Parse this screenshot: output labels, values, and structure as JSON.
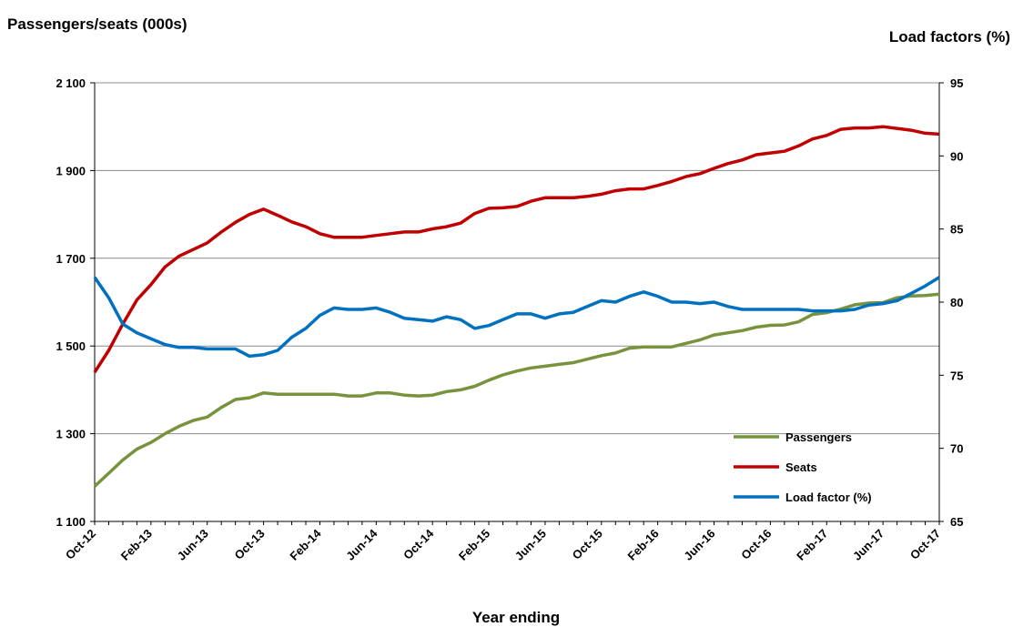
{
  "chart_data": {
    "type": "line",
    "y_left_label": "Passengers/seats (000s)",
    "y_right_label": "Load factors (%)",
    "xlabel": "Year ending",
    "x_tick_labels": [
      "Oct-12",
      "Feb-13",
      "Jun-13",
      "Oct-13",
      "Feb-14",
      "Jun-14",
      "Oct-14",
      "Feb-15",
      "Jun-15",
      "Oct-15",
      "Feb-16",
      "Jun-16",
      "Oct-16",
      "Feb-17",
      "Jun-17",
      "Oct-17"
    ],
    "y_left_ticks": [
      "1 100",
      "1 300",
      "1 500",
      "1 700",
      "1 900",
      "2 100"
    ],
    "y_right_ticks": [
      "65",
      "70",
      "75",
      "80",
      "85",
      "90",
      "95"
    ],
    "y_left_range": [
      1100,
      2100
    ],
    "y_right_range": [
      65,
      95
    ],
    "grid": true,
    "legend_position": "bottom-right",
    "series": [
      {
        "name": "Passengers",
        "axis": "left",
        "color": "#77933c",
        "values": [
          1180,
          1210,
          1240,
          1265,
          1280,
          1300,
          1317,
          1330,
          1338,
          1360,
          1378,
          1382,
          1393,
          1390,
          1390,
          1390,
          1390,
          1390,
          1386,
          1386,
          1393,
          1393,
          1388,
          1386,
          1388,
          1396,
          1400,
          1408,
          1422,
          1434,
          1443,
          1450,
          1454,
          1458,
          1462,
          1470,
          1478,
          1484,
          1495,
          1498,
          1498,
          1498,
          1506,
          1514,
          1525,
          1530,
          1535,
          1543,
          1547,
          1548,
          1555,
          1572,
          1576,
          1584,
          1594,
          1598,
          1599,
          1610,
          1614,
          1615,
          1618
        ]
      },
      {
        "name": "Seats",
        "axis": "left",
        "color": "#c00000",
        "values": [
          1440,
          1490,
          1550,
          1605,
          1640,
          1680,
          1705,
          1720,
          1735,
          1760,
          1782,
          1800,
          1812,
          1798,
          1783,
          1772,
          1756,
          1748,
          1748,
          1748,
          1752,
          1756,
          1760,
          1760,
          1767,
          1772,
          1780,
          1802,
          1814,
          1815,
          1818,
          1830,
          1838,
          1838,
          1838,
          1841,
          1846,
          1854,
          1858,
          1858,
          1866,
          1875,
          1886,
          1893,
          1905,
          1916,
          1924,
          1936,
          1940,
          1944,
          1956,
          1972,
          1980,
          1994,
          1997,
          1997,
          2000,
          1996,
          1992,
          1985,
          1983
        ]
      },
      {
        "name": "Load factor (%)",
        "axis": "right",
        "color": "#0070c0",
        "values": [
          81.7,
          80.3,
          78.5,
          77.9,
          77.5,
          77.1,
          76.9,
          76.9,
          76.8,
          76.8,
          76.8,
          76.3,
          76.4,
          76.7,
          77.6,
          78.2,
          79.1,
          79.6,
          79.5,
          79.5,
          79.6,
          79.3,
          78.9,
          78.8,
          78.7,
          79.0,
          78.8,
          78.2,
          78.4,
          78.8,
          79.2,
          79.2,
          78.9,
          79.2,
          79.3,
          79.7,
          80.1,
          80.0,
          80.4,
          80.7,
          80.4,
          80.0,
          80.0,
          79.9,
          80.0,
          79.7,
          79.5,
          79.5,
          79.5,
          79.5,
          79.5,
          79.4,
          79.4,
          79.4,
          79.5,
          79.8,
          79.9,
          80.1,
          80.6,
          81.1,
          81.7
        ]
      }
    ]
  }
}
